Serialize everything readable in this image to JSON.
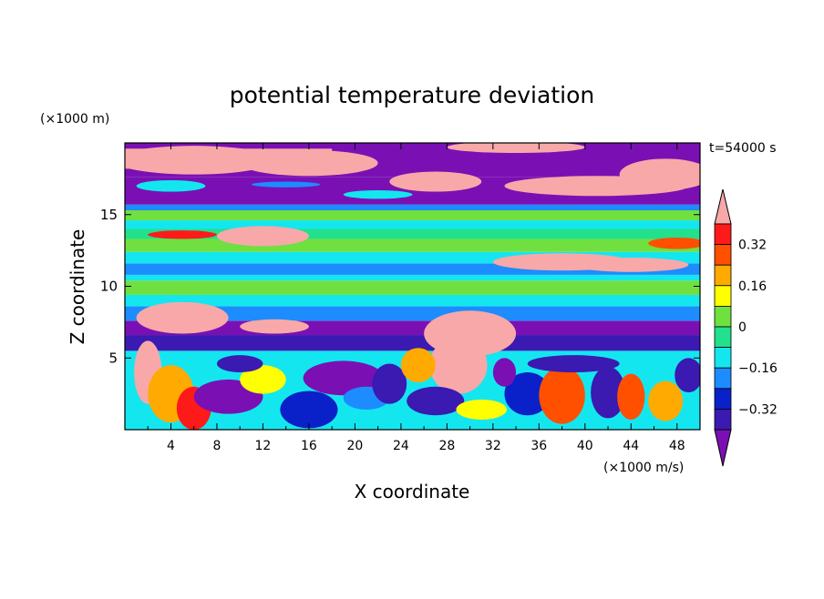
{
  "chart_data": {
    "type": "heatmap",
    "title": "potential temperature deviation",
    "time_label": "t=54000 s",
    "xlabel": "X coordinate",
    "ylabel": "Z coordinate",
    "x_unit": "(×1000 m/s)",
    "y_unit": "(×1000 m)",
    "xlim": [
      0,
      50
    ],
    "ylim": [
      0,
      20
    ],
    "x_ticks": [
      "4",
      "8",
      "12",
      "16",
      "20",
      "24",
      "28",
      "32",
      "36",
      "40",
      "44",
      "48"
    ],
    "y_ticks": [
      "5",
      "10",
      "15"
    ],
    "colorbar": {
      "levels": [
        -0.4,
        -0.32,
        -0.24,
        -0.16,
        -0.08,
        0,
        0.08,
        0.16,
        0.24,
        0.32,
        0.4
      ],
      "tick_labels": [
        "0.32",
        "0.16",
        "0",
        "−0.16",
        "−0.32"
      ],
      "colors": [
        "#7a10b4",
        "#3a1ab0",
        "#0a20c8",
        "#1c8cff",
        "#14e6f0",
        "#23e08c",
        "#6fe040",
        "#ffff00",
        "#ffaa00",
        "#ff5000",
        "#ff1a1a",
        "#f8a8a8"
      ]
    },
    "field_description_bands": [
      {
        "z_range": [
          18,
          20
        ],
        "dominant": "mixed pink and purple"
      },
      {
        "z_range": [
          15.5,
          18
        ],
        "dominant": "purple with pink"
      },
      {
        "z_range": [
          11,
          15.5
        ],
        "dominant": "cyan, green, blue bands"
      },
      {
        "z_range": [
          8,
          11
        ],
        "dominant": "green/cyan with pink blobs"
      },
      {
        "z_range": [
          5,
          8
        ],
        "dominant": "blue/purple"
      },
      {
        "z_range": [
          0,
          5
        ],
        "dominant": "turbulent mixed colors"
      }
    ]
  }
}
